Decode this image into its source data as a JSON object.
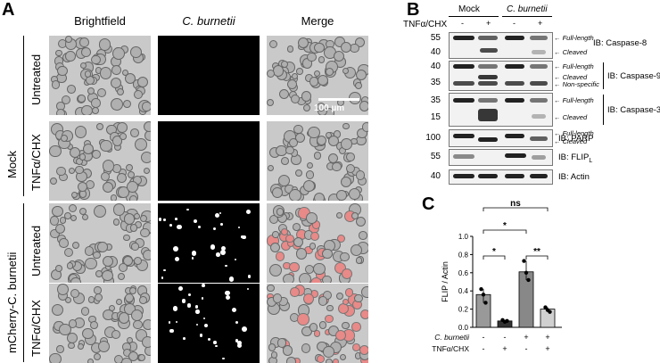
{
  "panelA": {
    "letter": "A",
    "columns": [
      "Brightfield",
      "C. burnetii",
      "Merge"
    ],
    "group_labels": {
      "mock": "Mock",
      "infected": "mCherry-C. burnetii"
    },
    "row_labels": [
      "Untreated",
      "TNFα/CHX",
      "Untreated",
      "TNFα/CHX"
    ],
    "scale_bar": "100 µm"
  },
  "panelB": {
    "letter": "B",
    "groups": [
      "Mock",
      "C. burnetii"
    ],
    "treatment_label": "TNFα/CHX",
    "lane_signs": [
      "-",
      "+",
      "-",
      "+"
    ],
    "markers": [
      "55",
      "40",
      "40",
      "35",
      "35",
      "15",
      "100",
      "55",
      "40"
    ],
    "annotations": {
      "full_length": "Full-length",
      "cleaved": "Cleaved",
      "non_specific": "Non-specific"
    },
    "blots": [
      "IB: Caspase-8",
      "IB: Caspase-9",
      "IB: Caspase-3",
      "IB: PARP",
      "IB: FLIP",
      "IB: Actin"
    ],
    "flip_subscript": "L"
  },
  "panelC": {
    "letter": "C",
    "chart_data": {
      "type": "bar",
      "categories": [
        "Mock",
        "Mock + TNFα/CHX",
        "C. burnetii",
        "C. burnetii + TNFα/CHX"
      ],
      "values": [
        0.36,
        0.07,
        0.61,
        0.2
      ],
      "points": [
        [
          0.42,
          0.36,
          0.27
        ],
        [
          0.08,
          0.06,
          0.07
        ],
        [
          0.73,
          0.6,
          0.52
        ],
        [
          0.22,
          0.19,
          0.17
        ]
      ],
      "colors": [
        "#999999",
        "#333333",
        "#888888",
        "#d0d0d0"
      ],
      "ylabel": "FLIP / Actin",
      "ylim": [
        0,
        1.0
      ],
      "yticks": [
        "0.0",
        "0.2",
        "0.4",
        "0.6",
        "0.8",
        "1.0"
      ],
      "row_labels": [
        "C. burnetii",
        "TNFα/CHX"
      ],
      "signs_row1": [
        "-",
        "-",
        "+",
        "+"
      ],
      "signs_row2": [
        "-",
        "+",
        "-",
        "+"
      ],
      "significance": [
        "*",
        "**",
        "*",
        "ns"
      ]
    }
  }
}
